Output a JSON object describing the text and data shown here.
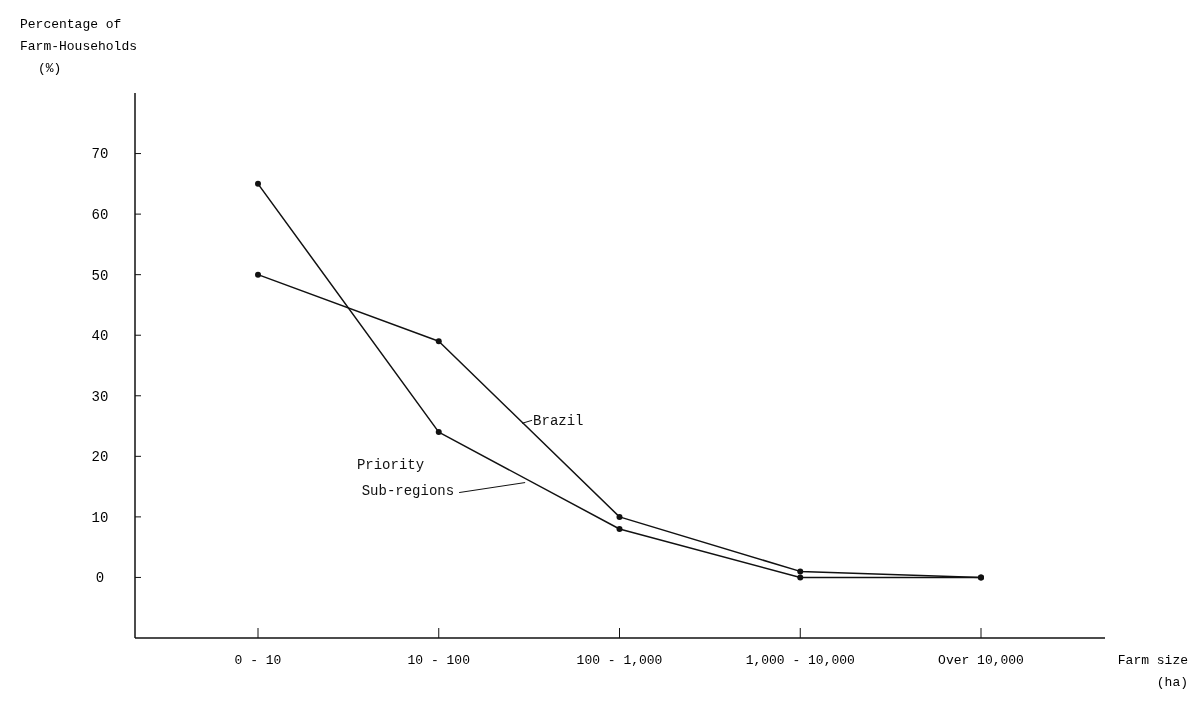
{
  "chart_data": {
    "type": "line",
    "xlabel": "Farm size (ha)",
    "ylabel": "Percentage of Farm-Households (%)",
    "categories": [
      "0 - 10",
      "10 - 100",
      "100 - 1,000",
      "1,000 - 10,000",
      "Over 10,000"
    ],
    "series": [
      {
        "name": "Brazil",
        "color": "#111111",
        "values": [
          50,
          39,
          10,
          1,
          0
        ]
      },
      {
        "name": "Priority Sub-regions",
        "color": "#111111",
        "values": [
          65,
          24,
          8,
          0,
          0
        ]
      }
    ],
    "ylim": [
      -10,
      80
    ],
    "yticks": [
      0,
      10,
      20,
      30,
      40,
      50,
      60,
      70
    ],
    "grid": false,
    "marker": "circle",
    "line_style": "solid"
  }
}
